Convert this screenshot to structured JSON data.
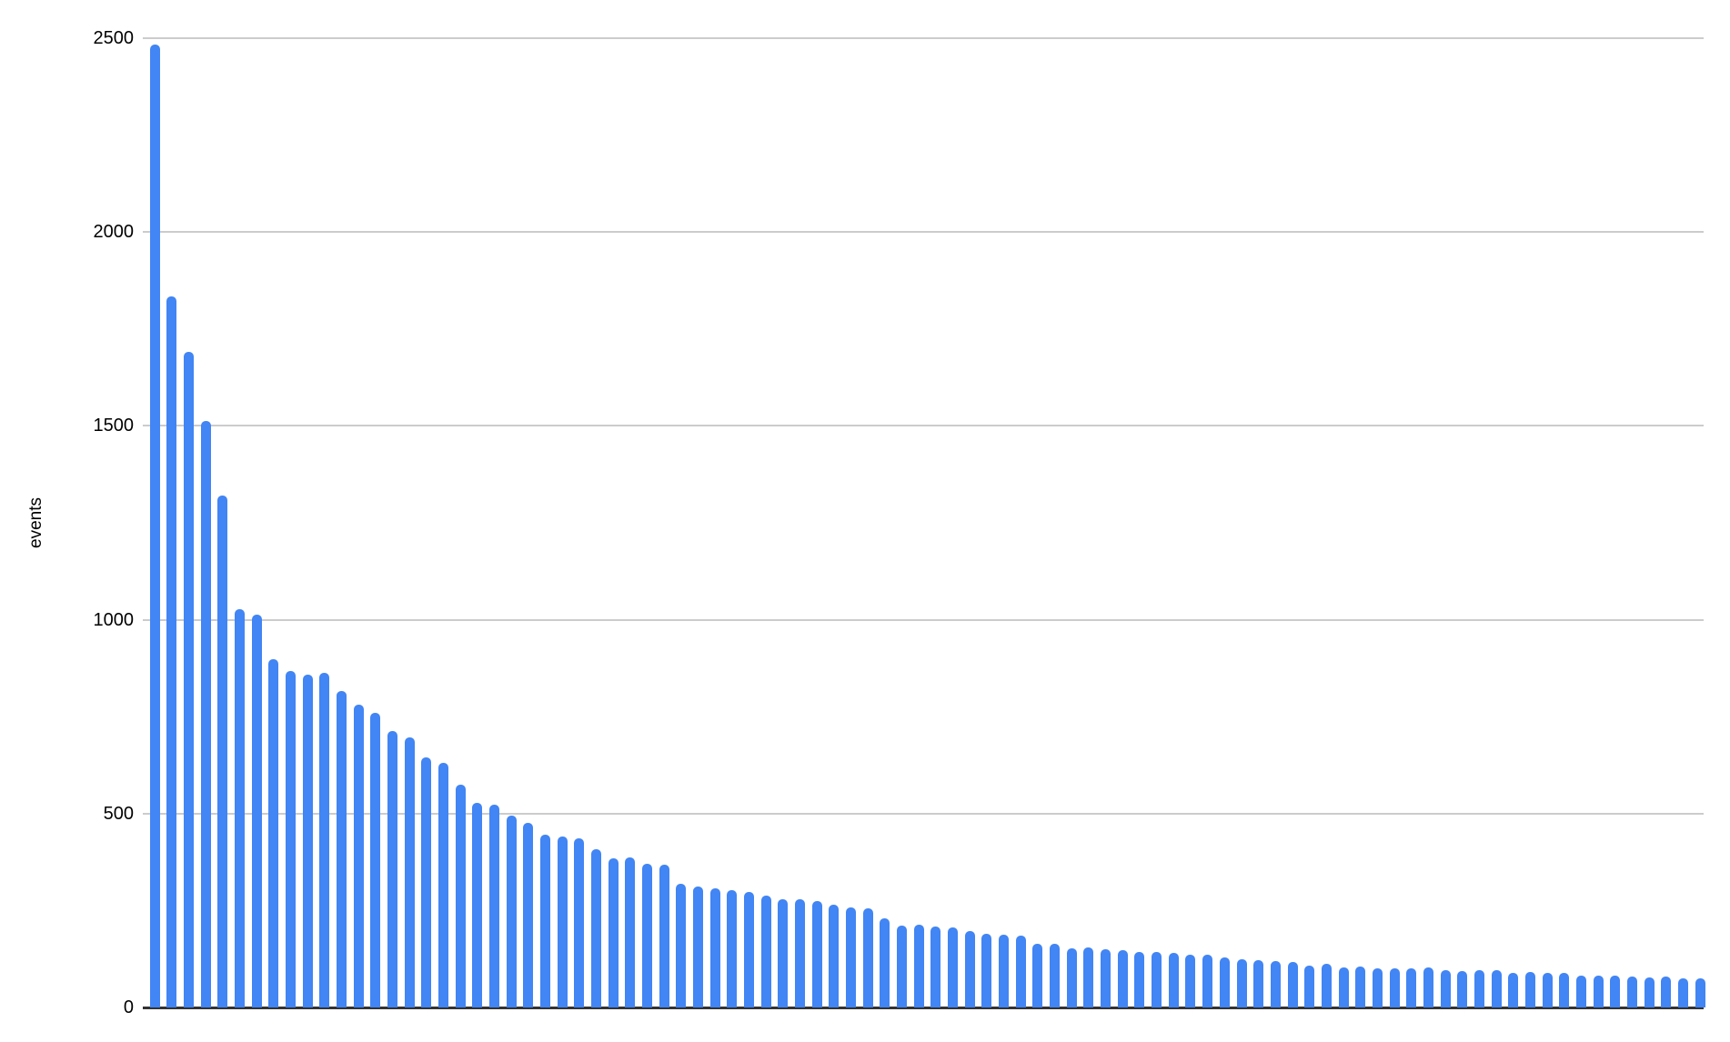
{
  "chart_data": {
    "type": "bar",
    "title": "",
    "xlabel": "",
    "ylabel": "events",
    "ylim": [
      0,
      2500
    ],
    "y_ticks": [
      0,
      500,
      1000,
      1500,
      2000,
      2500
    ],
    "grid": true,
    "legend": false,
    "x_tick_labels_visible": false,
    "bar_color": "#4285F4",
    "gridline_color": "#cccccc",
    "axis_line_color": "#333333",
    "label_color": "#000000",
    "categories": [],
    "values": [
      2483,
      1833,
      1690,
      1512,
      1320,
      1028,
      1012,
      898,
      867,
      858,
      862,
      816,
      780,
      759,
      712,
      697,
      645,
      630,
      575,
      527,
      523,
      495,
      477,
      446,
      442,
      437,
      408,
      385,
      388,
      370,
      369,
      318,
      312,
      308,
      303,
      297,
      288,
      280,
      279,
      275,
      264,
      257,
      255,
      231,
      212,
      213,
      208,
      206,
      196,
      189,
      187,
      186,
      164,
      163,
      153,
      155,
      150,
      148,
      142,
      144,
      140,
      137,
      135,
      130,
      124,
      121,
      119,
      117,
      109,
      112,
      103,
      105,
      100,
      101,
      100,
      103,
      97,
      94,
      95,
      96,
      90,
      91,
      88,
      90,
      83,
      81,
      83,
      80,
      77,
      80,
      76,
      74
    ]
  }
}
